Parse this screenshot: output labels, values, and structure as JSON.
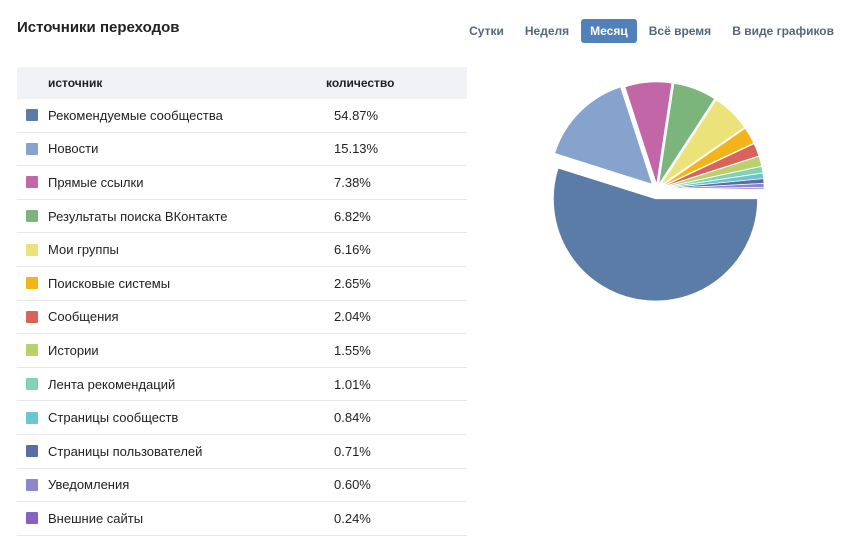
{
  "header": {
    "title": "Источники переходов"
  },
  "tabs": [
    {
      "label": "Сутки",
      "active": false
    },
    {
      "label": "Неделя",
      "active": false
    },
    {
      "label": "Месяц",
      "active": true
    },
    {
      "label": "Всё время",
      "active": false
    },
    {
      "label": "В виде графиков",
      "active": false
    }
  ],
  "table": {
    "col_source": "источник",
    "col_count": "количество",
    "rows": [
      {
        "name": "Рекомендуемые сообщества",
        "value": "54.87%",
        "color": "#5b7ca6"
      },
      {
        "name": "Новости",
        "value": "15.13%",
        "color": "#86a3cd"
      },
      {
        "name": "Прямые ссылки",
        "value": "7.38%",
        "color": "#c266a8"
      },
      {
        "name": "Результаты поиска ВКонтакте",
        "value": "6.82%",
        "color": "#7cb57c"
      },
      {
        "name": "Мои группы",
        "value": "6.16%",
        "color": "#ebe27a"
      },
      {
        "name": "Поисковые системы",
        "value": "2.65%",
        "color": "#f2b419"
      },
      {
        "name": "Сообщения",
        "value": "2.04%",
        "color": "#d9625b"
      },
      {
        "name": "Истории",
        "value": "1.55%",
        "color": "#b9d06b"
      },
      {
        "name": "Лента рекомендаций",
        "value": "1.01%",
        "color": "#7fd3b0"
      },
      {
        "name": "Страницы сообществ",
        "value": "0.84%",
        "color": "#6cc6d2"
      },
      {
        "name": "Страницы пользователей",
        "value": "0.71%",
        "color": "#5a6ea5"
      },
      {
        "name": "Уведомления",
        "value": "0.60%",
        "color": "#8c86cc"
      },
      {
        "name": "Внешние сайты",
        "value": "0.24%",
        "color": "#8760c2"
      }
    ]
  },
  "chart_data": {
    "type": "pie",
    "categories": [
      "Рекомендуемые сообщества",
      "Новости",
      "Прямые ссылки",
      "Результаты поиска ВКонтакте",
      "Мои группы",
      "Поисковые системы",
      "Сообщения",
      "Истории",
      "Лента рекомендаций",
      "Страницы сообществ",
      "Страницы пользователей",
      "Уведомления",
      "Внешние сайты"
    ],
    "values": [
      54.87,
      15.13,
      7.38,
      6.82,
      6.16,
      2.65,
      2.04,
      1.55,
      1.01,
      0.84,
      0.71,
      0.6,
      0.24
    ],
    "colors": [
      "#5b7ca6",
      "#86a3cd",
      "#c266a8",
      "#7cb57c",
      "#ebe27a",
      "#f2b419",
      "#d9625b",
      "#b9d06b",
      "#7fd3b0",
      "#6cc6d2",
      "#5a6ea5",
      "#8c86cc",
      "#8760c2"
    ],
    "exploded": true,
    "legend": "table-left"
  }
}
